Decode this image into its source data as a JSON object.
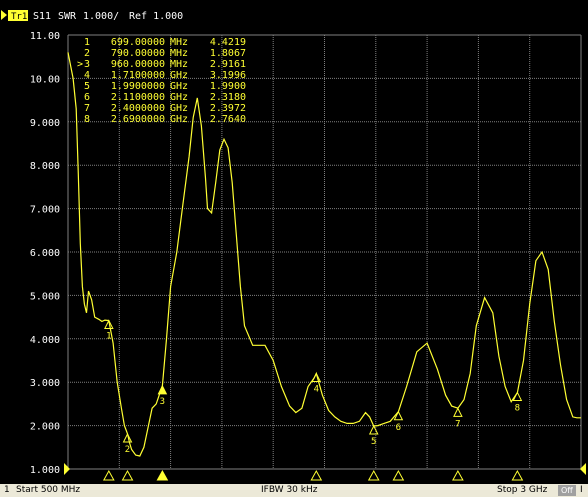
{
  "trace_header": {
    "trace_label": "Tr1",
    "parameter": "S11",
    "format": "SWR",
    "scale": "1.000/",
    "reference": "Ref 1.000"
  },
  "status_bar": {
    "channel": "1",
    "start": "Start 500 MHz",
    "ifbw": "IFBW 30 kHz",
    "stop": "Stop 3 GHz",
    "off_button": "Off",
    "extra": "I"
  },
  "colors": {
    "trace": "#ffff33",
    "grid": "#7f7f7f",
    "background": "#000000",
    "header_text": "#ffffff"
  },
  "chart_data": {
    "type": "line",
    "title": "S11 SWR",
    "x_unit": "MHz",
    "xlim": [
      500,
      3000
    ],
    "ylim": [
      1.0,
      11.0
    ],
    "yticks": [
      "11.00",
      "10.00",
      "9.000",
      "8.000",
      "7.000",
      "6.000",
      "5.000",
      "4.000",
      "3.000",
      "2.000",
      "1.000"
    ],
    "series": [
      {
        "name": "Tr1 S11",
        "x": [
          500,
          525,
          540,
          550,
          560,
          570,
          580,
          590,
          600,
          615,
          630,
          650,
          665,
          680,
          699,
          720,
          740,
          760,
          775,
          790,
          800,
          810,
          830,
          850,
          870,
          890,
          910,
          930,
          960,
          980,
          1000,
          1030,
          1060,
          1090,
          1110,
          1130,
          1150,
          1170,
          1180,
          1200,
          1220,
          1240,
          1260,
          1280,
          1300,
          1320,
          1340,
          1360,
          1400,
          1430,
          1460,
          1500,
          1540,
          1580,
          1610,
          1640,
          1670,
          1700,
          1710,
          1740,
          1770,
          1800,
          1830,
          1860,
          1890,
          1920,
          1950,
          1970,
          1990,
          2010,
          2040,
          2070,
          2110,
          2150,
          2200,
          2250,
          2300,
          2340,
          2370,
          2400,
          2430,
          2460,
          2490,
          2530,
          2570,
          2600,
          2630,
          2660,
          2690,
          2720,
          2750,
          2780,
          2810,
          2840,
          2870,
          2900,
          2930,
          2960,
          2980,
          3000
        ],
        "values": [
          10.6,
          10.0,
          9.3,
          7.8,
          6.2,
          5.2,
          4.8,
          4.6,
          5.1,
          4.9,
          4.5,
          4.45,
          4.4,
          4.43,
          4.42,
          3.9,
          3.0,
          2.4,
          2.0,
          1.81,
          1.6,
          1.45,
          1.32,
          1.3,
          1.5,
          1.95,
          2.4,
          2.5,
          2.92,
          4.0,
          5.2,
          6.0,
          7.1,
          8.2,
          9.1,
          9.55,
          8.9,
          7.7,
          7.0,
          6.9,
          7.6,
          8.35,
          8.6,
          8.4,
          7.6,
          6.4,
          5.2,
          4.3,
          3.85,
          3.85,
          3.85,
          3.5,
          2.9,
          2.45,
          2.3,
          2.4,
          2.9,
          3.1,
          3.2,
          2.7,
          2.35,
          2.2,
          2.1,
          2.05,
          2.05,
          2.1,
          2.3,
          2.2,
          1.99,
          2.0,
          2.05,
          2.1,
          2.32,
          2.9,
          3.7,
          3.9,
          3.3,
          2.7,
          2.45,
          2.4,
          2.6,
          3.2,
          4.3,
          4.95,
          4.6,
          3.6,
          2.9,
          2.55,
          2.76,
          3.5,
          4.8,
          5.8,
          6.0,
          5.6,
          4.4,
          3.4,
          2.6,
          2.2,
          2.18,
          2.18
        ]
      }
    ],
    "markers": [
      {
        "number": "1",
        "freq": "699.00000",
        "unit": "MHz",
        "value": "4.4219",
        "x": 699,
        "y": 4.4219,
        "active": false
      },
      {
        "number": "2",
        "freq": "790.00000",
        "unit": "MHz",
        "value": "1.8067",
        "x": 790,
        "y": 1.8067,
        "active": false
      },
      {
        "number": "3",
        "freq": "960.00000",
        "unit": "MHz",
        "value": "2.9161",
        "x": 960,
        "y": 2.9161,
        "active": true
      },
      {
        "number": "4",
        "freq": "1.7100000",
        "unit": "GHz",
        "value": "3.1996",
        "x": 1710,
        "y": 3.1996,
        "active": false
      },
      {
        "number": "5",
        "freq": "1.9900000",
        "unit": "GHz",
        "value": "1.9900",
        "x": 1990,
        "y": 1.99,
        "active": false
      },
      {
        "number": "6",
        "freq": "2.1100000",
        "unit": "GHz",
        "value": "2.3180",
        "x": 2110,
        "y": 2.318,
        "active": false
      },
      {
        "number": "7",
        "freq": "2.4000000",
        "unit": "GHz",
        "value": "2.3972",
        "x": 2400,
        "y": 2.3972,
        "active": false
      },
      {
        "number": "8",
        "freq": "2.6900000",
        "unit": "GHz",
        "value": "2.7640",
        "x": 2690,
        "y": 2.764,
        "active": false
      }
    ],
    "grid": true
  }
}
